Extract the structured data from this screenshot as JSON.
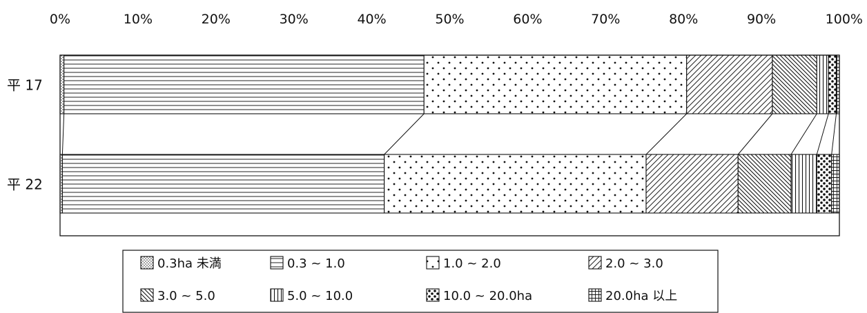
{
  "chart_data": {
    "type": "bar",
    "orientation": "horizontal",
    "stacked": true,
    "normalized_percent": true,
    "xlim": [
      0,
      100
    ],
    "x_ticks": [
      "0%",
      "10%",
      "20%",
      "30%",
      "40%",
      "50%",
      "60%",
      "70%",
      "80%",
      "90%",
      "100%"
    ],
    "categories": [
      "平 17",
      "平 22"
    ],
    "series": [
      {
        "name": "0.3ha 未満",
        "pattern": "dots-fine",
        "values": [
          0.5,
          0.3
        ]
      },
      {
        "name": "0.3 ~ 1.0",
        "pattern": "horizontal-lines",
        "values": [
          46.2,
          41.3
        ]
      },
      {
        "name": "1.0 ~ 2.0",
        "pattern": "dots-sparse",
        "values": [
          33.7,
          33.6
        ]
      },
      {
        "name": "2.0 ~ 3.0",
        "pattern": "diagonal-up",
        "values": [
          11.0,
          11.8
        ]
      },
      {
        "name": "3.0 ~ 5.0",
        "pattern": "diagonal-down",
        "values": [
          5.7,
          6.8
        ]
      },
      {
        "name": "5.0 ~ 10.0",
        "pattern": "vertical-lines",
        "values": [
          1.5,
          3.3
        ]
      },
      {
        "name": "10.0 ~ 20.0ha",
        "pattern": "checker-dots",
        "values": [
          1.0,
          1.9
        ]
      },
      {
        "name": "20.0ha 以上",
        "pattern": "grid",
        "values": [
          0.4,
          1.0
        ]
      }
    ],
    "connector_lines": true,
    "grid": false,
    "legend_position": "bottom"
  }
}
